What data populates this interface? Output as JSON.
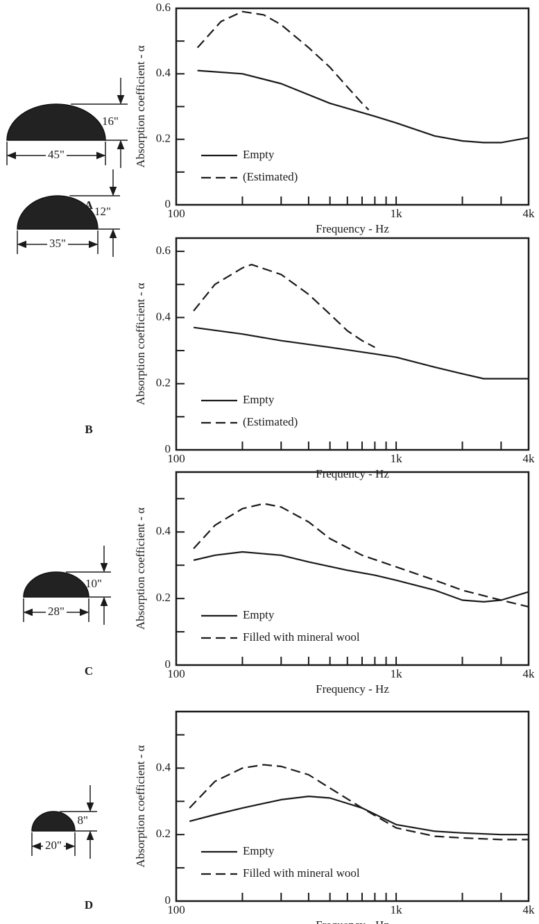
{
  "chart_data": [
    {
      "type": "line",
      "label": "A",
      "height_label": "16\"",
      "width_label": "45\"",
      "ylabel": "Absorption coefficient - α",
      "xlabel": "Frequency - Hz",
      "xscale": "log",
      "xlim": [
        100,
        4000
      ],
      "xticks": [
        100,
        {
          "value": 1000,
          "label": "1k"
        },
        {
          "value": 4000,
          "label": "4k"
        }
      ],
      "xminorticks": [
        200,
        300,
        400,
        500,
        600,
        700,
        800,
        900,
        2000,
        3000
      ],
      "ylim": [
        0,
        0.6
      ],
      "yticks": [
        0,
        0.2,
        0.4,
        0.6
      ],
      "yminorticks": [
        0.1,
        0.3,
        0.5
      ],
      "series": [
        {
          "name": "Empty",
          "color": "#1a1a1a",
          "dash": "solid",
          "x": [
            125,
            200,
            300,
            500,
            800,
            1000,
            1500,
            2000,
            2500,
            3000,
            4000
          ],
          "values": [
            0.41,
            0.4,
            0.37,
            0.31,
            0.27,
            0.25,
            0.21,
            0.195,
            0.19,
            0.19,
            0.205
          ]
        },
        {
          "name": "(Estimated)",
          "color": "#1a1a1a",
          "dash": "dashed",
          "x": [
            125,
            160,
            200,
            250,
            300,
            400,
            500,
            600,
            700,
            750
          ],
          "values": [
            0.48,
            0.56,
            0.59,
            0.58,
            0.55,
            0.48,
            0.42,
            0.36,
            0.31,
            0.29
          ]
        }
      ]
    },
    {
      "type": "line",
      "label": "B",
      "height_label": "12\"",
      "width_label": "35\"",
      "ylabel": "Absorption coefficient - α",
      "xlabel": "Frequency - Hz",
      "xscale": "log",
      "xlim": [
        100,
        4000
      ],
      "xticks": [
        100,
        {
          "value": 1000,
          "label": "1k"
        },
        {
          "value": 4000,
          "label": "4k"
        }
      ],
      "xminorticks": [
        200,
        300,
        400,
        500,
        600,
        700,
        800,
        900,
        2000,
        3000
      ],
      "ylim": [
        0,
        0.64
      ],
      "yticks": [
        0,
        0.2,
        0.4,
        0.6
      ],
      "yminorticks": [
        0.1,
        0.3,
        0.5
      ],
      "series": [
        {
          "name": "Empty",
          "color": "#1a1a1a",
          "dash": "solid",
          "x": [
            120,
            200,
            300,
            500,
            800,
            1000,
            1500,
            2000,
            2500,
            3000,
            4000
          ],
          "values": [
            0.37,
            0.35,
            0.33,
            0.31,
            0.29,
            0.28,
            0.25,
            0.23,
            0.215,
            0.215,
            0.215
          ]
        },
        {
          "name": "(Estimated)",
          "color": "#1a1a1a",
          "dash": "dashed",
          "x": [
            120,
            150,
            200,
            220,
            300,
            400,
            500,
            600,
            700,
            800
          ],
          "values": [
            0.42,
            0.5,
            0.55,
            0.56,
            0.53,
            0.47,
            0.41,
            0.36,
            0.33,
            0.31
          ]
        }
      ]
    },
    {
      "type": "line",
      "label": "C",
      "height_label": "10\"",
      "width_label": "28\"",
      "ylabel": "Absorption coefficient - α",
      "xlabel": "Frequency - Hz",
      "xscale": "log",
      "xlim": [
        100,
        4000
      ],
      "xticks": [
        100,
        {
          "value": 1000,
          "label": "1k"
        },
        {
          "value": 4000,
          "label": "4k"
        }
      ],
      "xminorticks": [
        200,
        300,
        400,
        500,
        600,
        700,
        800,
        900,
        2000,
        3000
      ],
      "ylim": [
        0,
        0.58
      ],
      "yticks": [
        0,
        0.2,
        0.4
      ],
      "yminorticks": [
        0.1,
        0.3,
        0.5
      ],
      "series": [
        {
          "name": "Empty",
          "color": "#1a1a1a",
          "dash": "solid",
          "x": [
            120,
            150,
            200,
            300,
            400,
            600,
            800,
            1000,
            1500,
            2000,
            2500,
            3000,
            4000
          ],
          "values": [
            0.315,
            0.33,
            0.34,
            0.33,
            0.31,
            0.285,
            0.27,
            0.255,
            0.225,
            0.195,
            0.19,
            0.195,
            0.22
          ]
        },
        {
          "name": "Filled with mineral wool",
          "color": "#1a1a1a",
          "dash": "dashed",
          "x": [
            120,
            150,
            200,
            250,
            300,
            400,
            500,
            700,
            1000,
            1500,
            2000,
            3000,
            4000
          ],
          "values": [
            0.35,
            0.42,
            0.47,
            0.485,
            0.475,
            0.43,
            0.38,
            0.33,
            0.295,
            0.255,
            0.225,
            0.195,
            0.175
          ]
        }
      ]
    },
    {
      "type": "line",
      "label": "D",
      "height_label": "8\"",
      "width_label": "20\"",
      "ylabel": "Absorption coefficient - α",
      "xlabel": "Frequency - Hz",
      "xscale": "log",
      "xlim": [
        100,
        4000
      ],
      "xticks": [
        100,
        {
          "value": 1000,
          "label": "1k"
        },
        {
          "value": 4000,
          "label": "4k"
        }
      ],
      "xminorticks": [
        200,
        300,
        400,
        500,
        600,
        700,
        800,
        900,
        2000,
        3000
      ],
      "ylim": [
        0,
        0.57
      ],
      "yticks": [
        0,
        0.2,
        0.4
      ],
      "yminorticks": [
        0.1,
        0.3,
        0.5
      ],
      "series": [
        {
          "name": "Empty",
          "color": "#1a1a1a",
          "dash": "solid",
          "x": [
            115,
            150,
            200,
            300,
            400,
            500,
            700,
            1000,
            1500,
            2000,
            3000,
            4000
          ],
          "values": [
            0.24,
            0.26,
            0.28,
            0.305,
            0.315,
            0.31,
            0.28,
            0.23,
            0.21,
            0.205,
            0.2,
            0.2
          ]
        },
        {
          "name": "Filled with mineral wool",
          "color": "#1a1a1a",
          "dash": "dashed",
          "x": [
            115,
            150,
            200,
            250,
            300,
            400,
            500,
            700,
            1000,
            1500,
            2000,
            3000,
            4000
          ],
          "values": [
            0.28,
            0.36,
            0.4,
            0.41,
            0.405,
            0.38,
            0.34,
            0.28,
            0.22,
            0.195,
            0.19,
            0.185,
            0.185
          ]
        }
      ]
    }
  ]
}
